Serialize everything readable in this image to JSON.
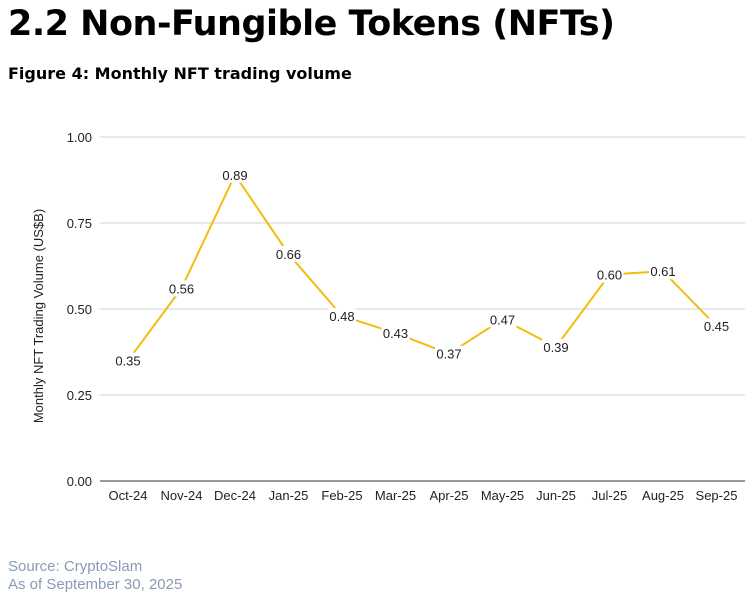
{
  "section_title": "2.2 Non-Fungible Tokens (NFTs)",
  "figure_title": "Figure 4: Monthly NFT trading volume",
  "source": "Source: CryptoSlam",
  "as_of": "As of September 30, 2025",
  "chart_data": {
    "type": "line",
    "title": "Figure 4: Monthly NFT trading volume",
    "xlabel": "",
    "ylabel": "Monthly NFT Trading Volume (US$B)",
    "ylim": [
      0,
      1
    ],
    "yticks": [
      "0.00",
      "0.25",
      "0.50",
      "0.75",
      "1.00"
    ],
    "ytick_values": [
      0,
      0.25,
      0.5,
      0.75,
      1.0
    ],
    "grid": true,
    "categories": [
      "Oct-24",
      "Nov-24",
      "Dec-24",
      "Jan-25",
      "Feb-25",
      "Mar-25",
      "Apr-25",
      "May-25",
      "Jun-25",
      "Jul-25",
      "Aug-25",
      "Sep-25"
    ],
    "series": [
      {
        "name": "Monthly NFT Trading Volume",
        "color": "#f1be10",
        "values": [
          0.35,
          0.56,
          0.89,
          0.66,
          0.48,
          0.43,
          0.37,
          0.47,
          0.39,
          0.6,
          0.61,
          0.45
        ],
        "labels": [
          "0.35",
          "0.56",
          "0.89",
          "0.66",
          "0.48",
          "0.43",
          "0.37",
          "0.47",
          "0.39",
          "0.60",
          "0.61",
          "0.45"
        ]
      }
    ]
  }
}
